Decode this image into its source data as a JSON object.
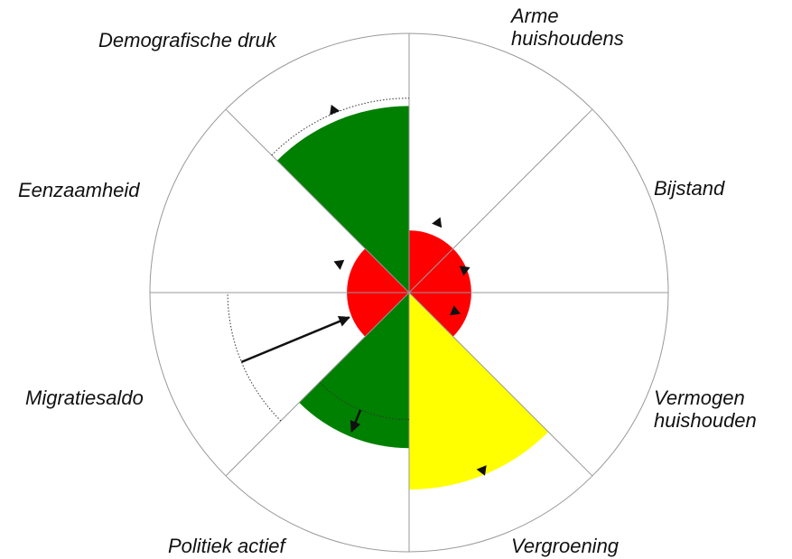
{
  "chart_data": {
    "type": "polar-area",
    "categories": [
      "Arme huishoudens",
      "Bijstand",
      "Vermogen huishouden",
      "Vergroening",
      "Politiek actief",
      "Migratiesaldo",
      "Eenzaamheid",
      "Demografische druk"
    ],
    "values": [
      24,
      24,
      24,
      76,
      60,
      24,
      24,
      72
    ],
    "colors": [
      "#ff0000",
      "#ff0000",
      "#ff0000",
      "#ffff00",
      "#008000",
      "#ff0000",
      "#ff0000",
      "#008000"
    ],
    "references": [
      28,
      22,
      18,
      73,
      58,
      25,
      28,
      75
    ],
    "previous": [
      null,
      null,
      null,
      null,
      49,
      70,
      null,
      75
    ],
    "ylim": [
      0,
      100
    ]
  }
}
